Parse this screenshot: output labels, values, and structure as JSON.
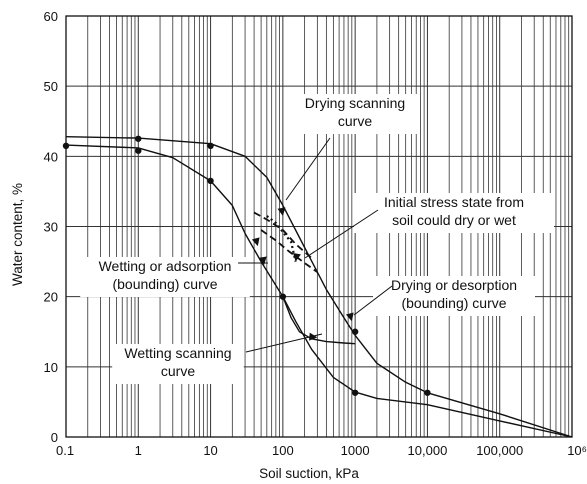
{
  "chart_data": {
    "type": "line",
    "title": "",
    "xlabel": "Soil suction, kPa",
    "ylabel": "Water content, %",
    "x_scale": "log",
    "xlim": [
      0.1,
      1000000
    ],
    "ylim": [
      0,
      60
    ],
    "grid": true,
    "x_tick_labels": [
      "0.1",
      "1",
      "10",
      "100",
      "1000",
      "10,000",
      "100,000",
      "10⁶"
    ],
    "y_tick_labels": [
      "0",
      "10",
      "20",
      "30",
      "40",
      "50",
      "60"
    ],
    "series": [
      {
        "role": "drying-desorption-bounding",
        "x": [
          0.1,
          1,
          10,
          30,
          60,
          100,
          200,
          400,
          700,
          1000,
          2000,
          5000,
          10000,
          100000,
          1000000
        ],
        "y": [
          42.8,
          42.6,
          41.8,
          40.0,
          37.0,
          33.0,
          27.0,
          21.0,
          17.0,
          14.5,
          10.5,
          7.8,
          6.3,
          3.3,
          0
        ],
        "markers": [
          [
            1,
            42.5
          ],
          [
            10,
            41.5
          ],
          [
            1000,
            15.0
          ],
          [
            10000,
            6.3
          ]
        ]
      },
      {
        "role": "wetting-adsorption-bounding",
        "x": [
          0.1,
          1,
          3,
          10,
          20,
          30,
          50,
          100,
          150,
          250,
          500,
          1000,
          2000,
          10000,
          100000,
          1000000
        ],
        "y": [
          41.6,
          41.2,
          39.8,
          36.5,
          33.0,
          29.0,
          25.0,
          20.0,
          16.5,
          12.5,
          8.5,
          6.4,
          5.5,
          4.6,
          2.3,
          0
        ],
        "markers": [
          [
            0.1,
            41.5
          ],
          [
            1,
            40.8
          ],
          [
            10,
            36.5
          ],
          [
            100,
            20.0
          ],
          [
            1000,
            6.3
          ]
        ]
      },
      {
        "role": "drying-scanning",
        "x": [
          100,
          130,
          170,
          250,
          400,
          700,
          1000
        ],
        "y": [
          20.0,
          17.0,
          15.0,
          14.0,
          13.6,
          13.4,
          13.3
        ]
      },
      {
        "role": "wetting-scanning",
        "x": [
          40,
          60,
          100,
          150,
          250
        ],
        "y": [
          32.0,
          31.0,
          29.5,
          27.5,
          25.5
        ]
      },
      {
        "role": "wetting-scanning-2",
        "x": [
          50,
          80,
          120,
          200,
          300
        ],
        "y": [
          29.5,
          28.0,
          26.5,
          24.8,
          23.5
        ]
      },
      {
        "role": "initial-stress-state",
        "x": [
          60,
          80,
          100,
          130,
          150
        ],
        "y": [
          31.5,
          30.5,
          29.2,
          27.8,
          25.0
        ]
      }
    ],
    "annotations": [
      {
        "id": "drying-scanning",
        "lines": [
          "Drying scanning",
          "curve"
        ]
      },
      {
        "id": "initial-stress",
        "lines": [
          "Initial stress state from",
          "soil could dry or wet"
        ]
      },
      {
        "id": "wetting-adsorption",
        "lines": [
          "Wetting or adsorption",
          "(bounding) curve"
        ]
      },
      {
        "id": "drying-desorption",
        "lines": [
          "Drying or desorption",
          "(bounding) curve"
        ]
      },
      {
        "id": "wetting-scanning",
        "lines": [
          "Wetting scanning",
          "curve"
        ]
      }
    ]
  }
}
